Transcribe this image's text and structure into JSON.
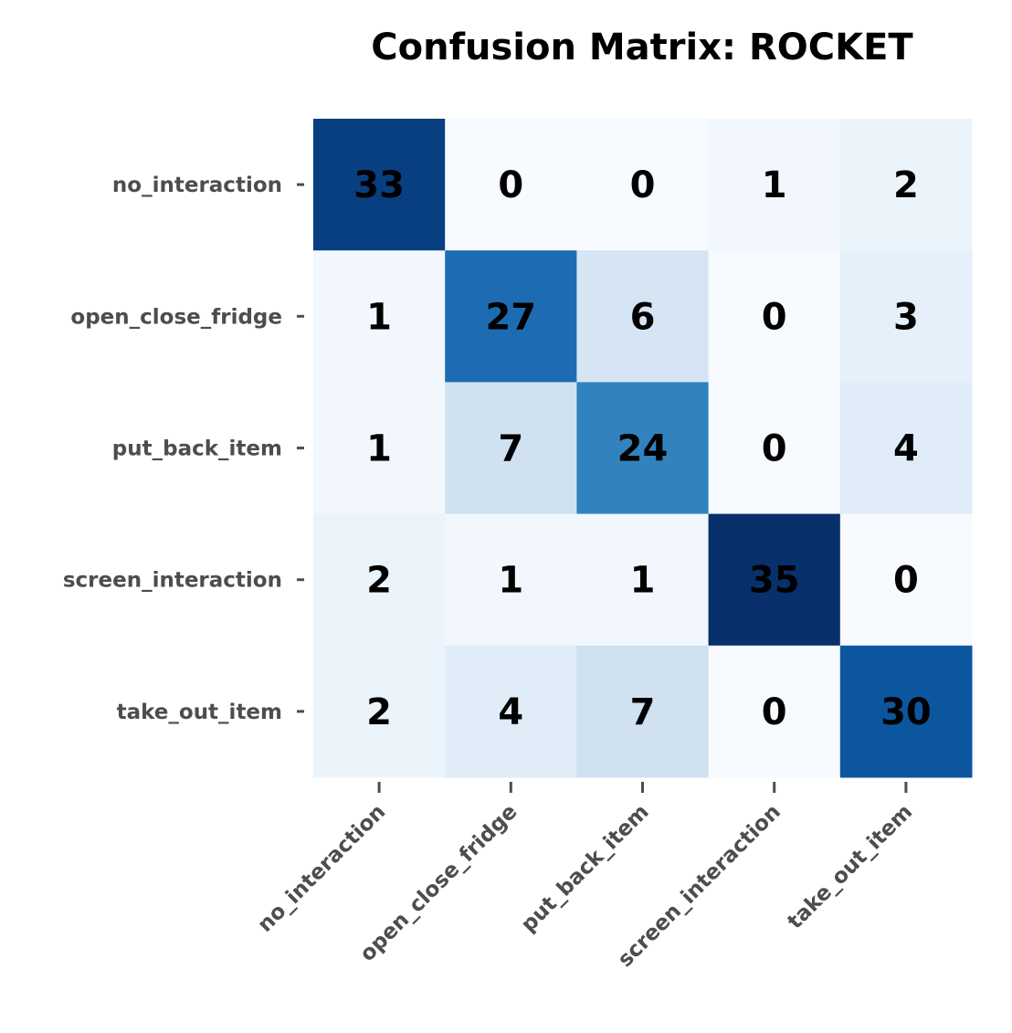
{
  "chart_data": {
    "type": "heatmap",
    "title": "Confusion Matrix: ROCKET",
    "xlabel": "",
    "ylabel": "",
    "x_categories": [
      "no_interaction",
      "open_close_fridge",
      "put_back_item",
      "screen_interaction",
      "take_out_item"
    ],
    "y_categories": [
      "no_interaction",
      "open_close_fridge",
      "put_back_item",
      "screen_interaction",
      "take_out_item"
    ],
    "values": [
      [
        33,
        0,
        0,
        1,
        2
      ],
      [
        1,
        27,
        6,
        0,
        3
      ],
      [
        1,
        7,
        24,
        0,
        4
      ],
      [
        2,
        1,
        1,
        35,
        0
      ],
      [
        2,
        4,
        7,
        0,
        30
      ]
    ],
    "colormap": "Blues",
    "value_range": [
      0,
      35
    ],
    "colorbar": false,
    "grid": false,
    "colors": {
      "low": "#f7fbff",
      "high": "#08306b",
      "cell_text": "#000000",
      "tick_text": "#4d4d4d"
    }
  }
}
